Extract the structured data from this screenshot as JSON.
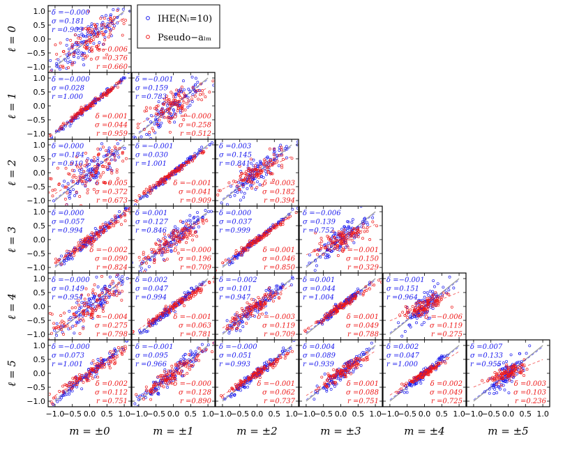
{
  "chart_data": {
    "type": "scatter",
    "layout": "lower-triangular grid of scatter panels (rows = ell, columns = m)",
    "x_range": [
      -1.2,
      1.2
    ],
    "y_range": [
      -1.2,
      1.2
    ],
    "x_ticks": [
      "−1.0",
      "−0.5",
      "0.0",
      "0.5",
      "1.0"
    ],
    "y_ticks": [
      "−1.0",
      "−0.5",
      "0.0",
      "0.5",
      "1.0"
    ],
    "row_labels": [
      "ℓ = 0",
      "ℓ = 1",
      "ℓ = 2",
      "ℓ = 3",
      "ℓ = 4",
      "ℓ = 5"
    ],
    "col_labels": [
      "m = ±0",
      "m = ±1",
      "m = ±2",
      "m = ±3",
      "m = ±4",
      "m = ±5"
    ],
    "legend": {
      "position": "top, right of first panel",
      "entries": [
        {
          "label": "IHE(Nₗ=10)",
          "color": "#1a1aee"
        },
        {
          "label": "Pseudo−aₗₘ",
          "color": "#ee1a1a"
        }
      ]
    },
    "series_colors": {
      "ihe": "#1a1aee",
      "pseudo": "#ee1a1a",
      "diagonal": "#9a9a9a"
    },
    "panels": [
      {
        "row": 0,
        "col": 0,
        "ihe": {
          "delta": "δ =−0.000",
          "sigma": "σ =0.181",
          "r": "r =0.909"
        },
        "pseudo": {
          "delta": "δ =−0.006",
          "sigma": "σ =0.376",
          "r": "r =0.660"
        }
      },
      {
        "row": 1,
        "col": 0,
        "ihe": {
          "delta": "δ =−0.000",
          "sigma": "σ =0.028",
          "r": "r =1.000"
        },
        "pseudo": {
          "delta": "δ =0.001",
          "sigma": "σ =0.044",
          "r": "r =0.959"
        }
      },
      {
        "row": 1,
        "col": 1,
        "ihe": {
          "delta": "δ =−0.001",
          "sigma": "σ =0.159",
          "r": "r =0.783"
        },
        "pseudo": {
          "delta": "δ =−0.000",
          "sigma": "σ =0.258",
          "r": "r =0.512"
        }
      },
      {
        "row": 2,
        "col": 0,
        "ihe": {
          "delta": "δ =0.000",
          "sigma": "σ =0.184",
          "r": "r =0.910"
        },
        "pseudo": {
          "delta": "δ =0.005",
          "sigma": "σ =0.372",
          "r": "r =0.673"
        }
      },
      {
        "row": 2,
        "col": 1,
        "ihe": {
          "delta": "δ =−0.001",
          "sigma": "σ =0.030",
          "r": "r =1.001"
        },
        "pseudo": {
          "delta": "δ =−0.001",
          "sigma": "σ =0.041",
          "r": "r =0.909"
        }
      },
      {
        "row": 2,
        "col": 2,
        "ihe": {
          "delta": "δ =0.003",
          "sigma": "σ =0.145",
          "r": "r =0.841"
        },
        "pseudo": {
          "delta": "δ =0.003",
          "sigma": "σ =0.182",
          "r": "r =0.394"
        }
      },
      {
        "row": 3,
        "col": 0,
        "ihe": {
          "delta": "δ =0.000",
          "sigma": "σ =0.057",
          "r": "r =0.994"
        },
        "pseudo": {
          "delta": "δ =−0.002",
          "sigma": "σ =0.090",
          "r": "r =0.824"
        }
      },
      {
        "row": 3,
        "col": 1,
        "ihe": {
          "delta": "δ =0.001",
          "sigma": "σ =0.127",
          "r": "r =0.846"
        },
        "pseudo": {
          "delta": "δ =−0.000",
          "sigma": "σ =0.196",
          "r": "r =0.709"
        }
      },
      {
        "row": 3,
        "col": 2,
        "ihe": {
          "delta": "δ =0.000",
          "sigma": "σ =0.037",
          "r": "r =0.999"
        },
        "pseudo": {
          "delta": "δ =0.001",
          "sigma": "σ =0.046",
          "r": "r =0.850"
        }
      },
      {
        "row": 3,
        "col": 3,
        "ihe": {
          "delta": "δ =−0.006",
          "sigma": "σ =0.139",
          "r": "r =0.752"
        },
        "pseudo": {
          "delta": "δ =−0.001",
          "sigma": "σ =0.150",
          "r": "r =0.329"
        }
      },
      {
        "row": 4,
        "col": 0,
        "ihe": {
          "delta": "δ =−0.000",
          "sigma": "σ =0.149",
          "r": "r =0.954"
        },
        "pseudo": {
          "delta": "δ =−0.004",
          "sigma": "σ =0.275",
          "r": "r =0.798"
        }
      },
      {
        "row": 4,
        "col": 1,
        "ihe": {
          "delta": "δ =0.002",
          "sigma": "σ =0.047",
          "r": "r =0.994"
        },
        "pseudo": {
          "delta": "δ =−0.001",
          "sigma": "σ =0.063",
          "r": "r =0.781"
        }
      },
      {
        "row": 4,
        "col": 2,
        "ihe": {
          "delta": "δ =−0.002",
          "sigma": "σ =0.101",
          "r": "r =0.947"
        },
        "pseudo": {
          "delta": "δ =−0.003",
          "sigma": "σ =0.119",
          "r": "r =0.709"
        }
      },
      {
        "row": 4,
        "col": 3,
        "ihe": {
          "delta": "δ =0.001",
          "sigma": "σ =0.044",
          "r": "r =1.004"
        },
        "pseudo": {
          "delta": "δ =0.001",
          "sigma": "σ =0.049",
          "r": "r =0.788"
        }
      },
      {
        "row": 4,
        "col": 4,
        "ihe": {
          "delta": "δ =−0.001",
          "sigma": "σ =0.151",
          "r": "r =0.964"
        },
        "pseudo": {
          "delta": "δ =−0.006",
          "sigma": "σ =0.119",
          "r": "r =0.275"
        }
      },
      {
        "row": 5,
        "col": 0,
        "ihe": {
          "delta": "δ =−0.000",
          "sigma": "σ =0.073",
          "r": "r =1.001"
        },
        "pseudo": {
          "delta": "δ =0.002",
          "sigma": "σ =0.112",
          "r": "r =0.751"
        }
      },
      {
        "row": 5,
        "col": 1,
        "ihe": {
          "delta": "δ =−0.001",
          "sigma": "σ =0.095",
          "r": "r =0.966"
        },
        "pseudo": {
          "delta": "δ =−0.000",
          "sigma": "σ =0.128",
          "r": "r =0.890"
        }
      },
      {
        "row": 5,
        "col": 2,
        "ihe": {
          "delta": "δ =−0.000",
          "sigma": "σ =0.051",
          "r": "r =0.993"
        },
        "pseudo": {
          "delta": "δ =−0.001",
          "sigma": "σ =0.062",
          "r": "r =0.737"
        }
      },
      {
        "row": 5,
        "col": 3,
        "ihe": {
          "delta": "δ =0.004",
          "sigma": "σ =0.089",
          "r": "r =0.939"
        },
        "pseudo": {
          "delta": "δ =0.001",
          "sigma": "σ =0.088",
          "r": "r =0.751"
        }
      },
      {
        "row": 5,
        "col": 4,
        "ihe": {
          "delta": "δ =0.002",
          "sigma": "σ =0.047",
          "r": "r =1.000"
        },
        "pseudo": {
          "delta": "δ =0.002",
          "sigma": "σ =0.049",
          "r": "r =0.725"
        }
      },
      {
        "row": 5,
        "col": 5,
        "ihe": {
          "delta": "δ =0.007",
          "sigma": "σ =0.133",
          "r": "r =0.955"
        },
        "pseudo": {
          "delta": "δ =0.003",
          "sigma": "σ =0.103",
          "r": "r =0.236"
        }
      }
    ]
  }
}
